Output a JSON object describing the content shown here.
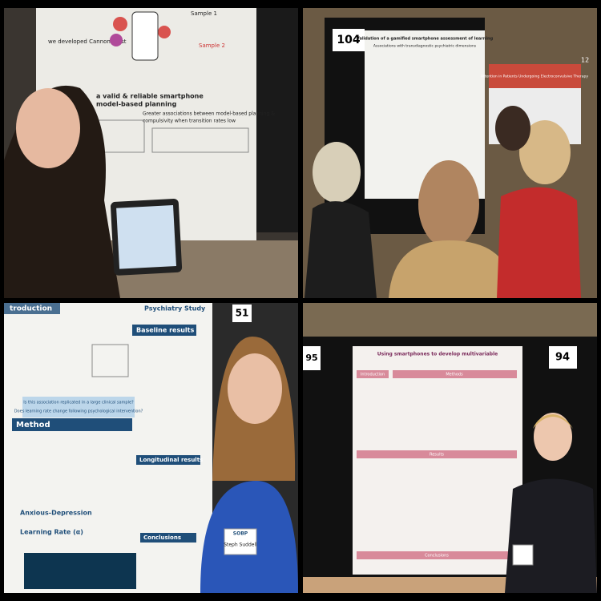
{
  "panels": [
    {
      "texts": {
        "sample_1": "Sample 1",
        "sample_2": "Sample 2",
        "heading_1": "we developed Cannon Blast",
        "heading_2": "a valid & reliable smartphone",
        "heading_3": "model-based planning",
        "heading_4": "Greater associations between model-based planning &",
        "heading_5": "compulsivity when transition rates low"
      }
    },
    {
      "texts": {
        "poster_number": "104",
        "title": "Validation of a gamified smartphone assessment of learning",
        "subtitle": "Associations with transdiagnostic psychiatric dimensions",
        "neighbor_title": "Attention in Patients Undergoing Electroconvulsive Therapy",
        "neighbor_number": "12"
      }
    },
    {
      "texts": {
        "poster_number": "51",
        "intro": "troduction",
        "study": "Psychiatry Study",
        "question_1": "Is this association replicated in a large clinical sample?",
        "question_2": "Does learning rate change following psychological intervention?",
        "method": "Method",
        "baseline": "Baseline results",
        "longitudinal": "Longitudinal results",
        "anxious": "Anxious-Depression",
        "learning_rate": "Learning Rate (α)",
        "conclusions": "Conclusions",
        "badge_org": "SOBP",
        "badge_name": "Steph Suddell"
      }
    },
    {
      "texts": {
        "number_left": "95",
        "poster_number": "94",
        "title": "Using smartphones to develop multivariable",
        "introduction": "Introduction",
        "methods": "Methods",
        "results": "Results",
        "conclusions": "Conclusions"
      }
    }
  ]
}
